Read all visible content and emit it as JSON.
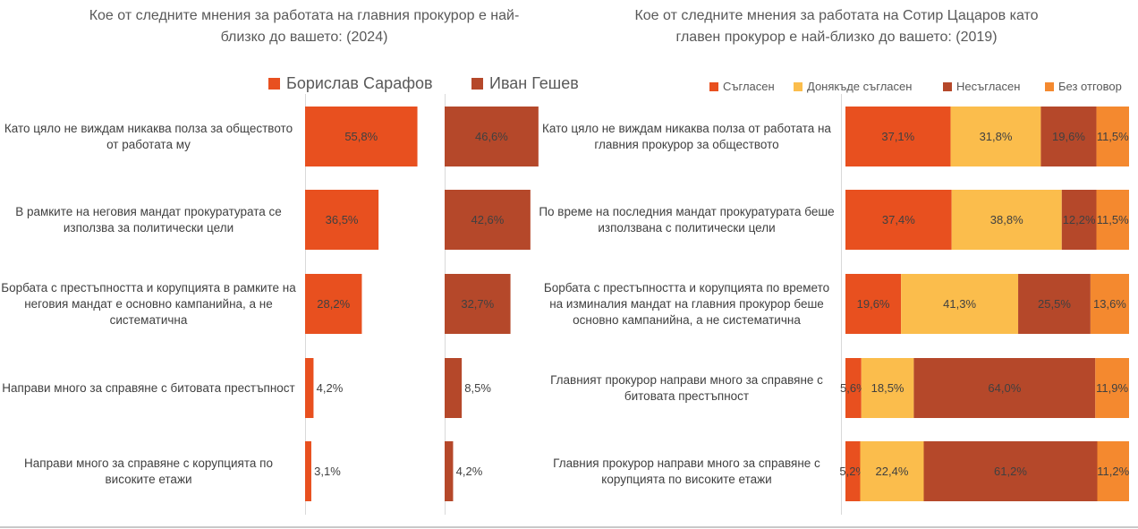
{
  "chart_data": [
    {
      "type": "bar",
      "title": "Кое от следните мнения за работата на главния прокурор е най-близко до вашето: (2024)",
      "categories": [
        "Като цяло не виждам никаква полза за обществото от работата му",
        "В рамките на неговия мандат прокуратурата се използва за политически цели",
        "Борбата с престъпността и корупцията в рамките на неговия мандат е основно кампанийна, а не систематична",
        "Направи много за справяне с битовата престъпност",
        "Направи много за справяне с корупцията по високите етажи"
      ],
      "series": [
        {
          "name": "Борислав Сарафов",
          "color": "#e8501f",
          "values": [
            55.8,
            36.5,
            28.2,
            4.2,
            3.1
          ],
          "labels": [
            "55,8%",
            "36,5%",
            "28,2%",
            "4,2%",
            "3,1%"
          ]
        },
        {
          "name": "Иван Гешев",
          "color": "#b5482a",
          "values": [
            46.6,
            42.6,
            32.7,
            8.5,
            4.2
          ],
          "labels": [
            "46,6%",
            "42,6%",
            "32,7%",
            "8,5%",
            "4,2%"
          ]
        }
      ],
      "legend": "top",
      "grid": false
    },
    {
      "type": "bar",
      "stacked": true,
      "orientation": "horizontal",
      "title": "Кое от следните мнения за работата на Сотир Цацаров като главен прокурор е най-близко до вашето: (2019)",
      "categories": [
        "Като цяло не виждам никаква полза от работата на главния прокурор за обществото",
        "По време на последния мандат прокуратурата беше използвана с политически цели",
        "Борбата с престъпността и корупцията по времето на изминалия мандат на главния прокурор беше основно кампанийна, а не систематична",
        "Главният прокурор направи много за справяне с битовата престъпност",
        "Главния прокурор направи много за справяне с корупцията по високите етажи"
      ],
      "series": [
        {
          "name": "Съгласен",
          "color": "#e8501f",
          "values": [
            37.1,
            37.4,
            19.6,
            5.6,
            5.2
          ],
          "labels": [
            "37,1%",
            "37,4%",
            "19,6%",
            "5,6%",
            "5,2%"
          ]
        },
        {
          "name": "Донякъде съгласен",
          "color": "#fbbd4c",
          "values": [
            31.8,
            38.8,
            41.3,
            18.5,
            22.4
          ],
          "labels": [
            "31,8%",
            "38,8%",
            "41,3%",
            "18,5%",
            "22,4%"
          ]
        },
        {
          "name": "Несъгласен",
          "color": "#b5482a",
          "values": [
            19.6,
            12.2,
            25.5,
            64.0,
            61.2
          ],
          "labels": [
            "19,6%",
            "12,2%",
            "25,5%",
            "64,0%",
            "61,2%"
          ]
        },
        {
          "name": "Без отговор",
          "color": "#f4892f",
          "values": [
            11.5,
            11.5,
            13.6,
            11.9,
            11.2
          ],
          "labels": [
            "11,5%",
            "11,5%",
            "13,6%",
            "11,9%",
            "11,2%"
          ]
        }
      ],
      "legend": "top-right",
      "grid": false
    }
  ]
}
